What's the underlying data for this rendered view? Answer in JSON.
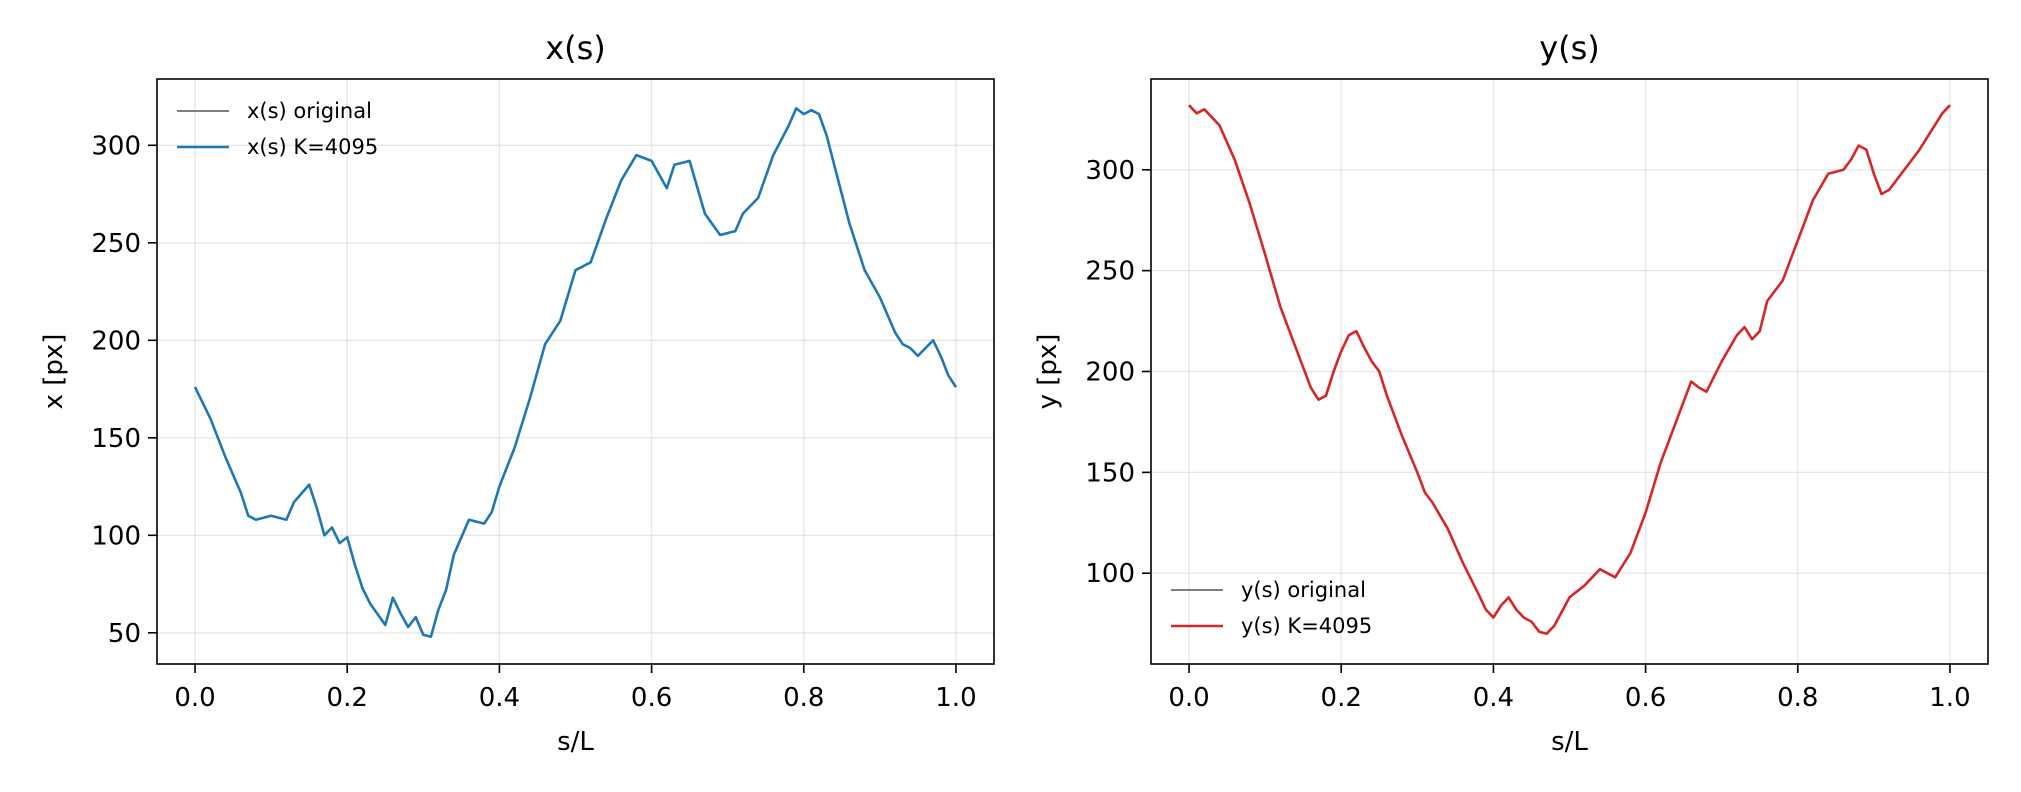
{
  "chart_data": [
    {
      "type": "line",
      "title": "x(s)",
      "xlabel": "s/L",
      "ylabel": "x [px]",
      "xlim": [
        -0.05,
        1.05
      ],
      "ylim": [
        34,
        334
      ],
      "xticks": [
        "0.0",
        "0.2",
        "0.4",
        "0.6",
        "0.8",
        "1.0"
      ],
      "yticks": [
        "50",
        "100",
        "150",
        "200",
        "250",
        "300"
      ],
      "grid": true,
      "legend_position": "upper left",
      "legend": [
        "x(s) original",
        "x(s) K=4095"
      ],
      "series": [
        {
          "name": "x(s) original",
          "color": "#7f7f7f",
          "x": [
            0.0,
            0.02,
            0.04,
            0.06,
            0.07,
            0.08,
            0.1,
            0.12,
            0.13,
            0.15,
            0.16,
            0.17,
            0.18,
            0.19,
            0.2,
            0.21,
            0.22,
            0.23,
            0.25,
            0.26,
            0.27,
            0.28,
            0.29,
            0.3,
            0.31,
            0.32,
            0.33,
            0.34,
            0.36,
            0.38,
            0.39,
            0.4,
            0.42,
            0.44,
            0.46,
            0.48,
            0.5,
            0.52,
            0.54,
            0.56,
            0.58,
            0.6,
            0.62,
            0.63,
            0.65,
            0.67,
            0.69,
            0.71,
            0.72,
            0.74,
            0.76,
            0.78,
            0.79,
            0.8,
            0.81,
            0.82,
            0.83,
            0.84,
            0.86,
            0.88,
            0.9,
            0.92,
            0.93,
            0.94,
            0.95,
            0.97,
            0.98,
            0.99,
            1.0
          ],
          "y": [
            176,
            160,
            140,
            122,
            110,
            108,
            110,
            108,
            117,
            126,
            114,
            100,
            104,
            96,
            99,
            85,
            73,
            65,
            54,
            68,
            60,
            53,
            58,
            49,
            48,
            62,
            72,
            90,
            108,
            106,
            112,
            125,
            145,
            170,
            198,
            210,
            236,
            240,
            262,
            282,
            295,
            292,
            278,
            290,
            292,
            265,
            254,
            256,
            265,
            273,
            295,
            310,
            319,
            316,
            318,
            316,
            305,
            290,
            260,
            236,
            222,
            204,
            198,
            196,
            192,
            200,
            192,
            182,
            176
          ]
        },
        {
          "name": "x(s) K=4095",
          "color": "#1f77b4",
          "x": [
            0.0,
            0.02,
            0.04,
            0.06,
            0.07,
            0.08,
            0.1,
            0.12,
            0.13,
            0.15,
            0.16,
            0.17,
            0.18,
            0.19,
            0.2,
            0.21,
            0.22,
            0.23,
            0.25,
            0.26,
            0.27,
            0.28,
            0.29,
            0.3,
            0.31,
            0.32,
            0.33,
            0.34,
            0.36,
            0.38,
            0.39,
            0.4,
            0.42,
            0.44,
            0.46,
            0.48,
            0.5,
            0.52,
            0.54,
            0.56,
            0.58,
            0.6,
            0.62,
            0.63,
            0.65,
            0.67,
            0.69,
            0.71,
            0.72,
            0.74,
            0.76,
            0.78,
            0.79,
            0.8,
            0.81,
            0.82,
            0.83,
            0.84,
            0.86,
            0.88,
            0.9,
            0.92,
            0.93,
            0.94,
            0.95,
            0.97,
            0.98,
            0.99,
            1.0
          ],
          "y": [
            176,
            160,
            140,
            122,
            110,
            108,
            110,
            108,
            117,
            126,
            114,
            100,
            104,
            96,
            99,
            85,
            73,
            65,
            54,
            68,
            60,
            53,
            58,
            49,
            48,
            62,
            72,
            90,
            108,
            106,
            112,
            125,
            145,
            170,
            198,
            210,
            236,
            240,
            262,
            282,
            295,
            292,
            278,
            290,
            292,
            265,
            254,
            256,
            265,
            273,
            295,
            310,
            319,
            316,
            318,
            316,
            305,
            290,
            260,
            236,
            222,
            204,
            198,
            196,
            192,
            200,
            192,
            182,
            176
          ]
        }
      ]
    },
    {
      "type": "line",
      "title": "y(s)",
      "xlabel": "s/L",
      "ylabel": "y [px]",
      "xlim": [
        -0.05,
        1.05
      ],
      "ylim": [
        55,
        345
      ],
      "xticks": [
        "0.0",
        "0.2",
        "0.4",
        "0.6",
        "0.8",
        "1.0"
      ],
      "yticks": [
        "100",
        "150",
        "200",
        "250",
        "300"
      ],
      "grid": true,
      "legend_position": "lower left",
      "legend": [
        "y(s) original",
        "y(s) K=4095"
      ],
      "series": [
        {
          "name": "y(s) original",
          "color": "#7f7f7f",
          "x": [
            0.0,
            0.01,
            0.02,
            0.03,
            0.04,
            0.06,
            0.08,
            0.1,
            0.12,
            0.14,
            0.16,
            0.17,
            0.18,
            0.19,
            0.2,
            0.21,
            0.22,
            0.23,
            0.24,
            0.25,
            0.26,
            0.28,
            0.3,
            0.31,
            0.32,
            0.34,
            0.36,
            0.38,
            0.39,
            0.4,
            0.41,
            0.42,
            0.43,
            0.44,
            0.45,
            0.46,
            0.47,
            0.48,
            0.5,
            0.52,
            0.54,
            0.56,
            0.58,
            0.6,
            0.62,
            0.64,
            0.66,
            0.67,
            0.68,
            0.7,
            0.72,
            0.73,
            0.74,
            0.75,
            0.76,
            0.78,
            0.8,
            0.82,
            0.84,
            0.86,
            0.87,
            0.88,
            0.89,
            0.9,
            0.91,
            0.92,
            0.94,
            0.96,
            0.98,
            0.99,
            1.0
          ],
          "y": [
            332,
            328,
            330,
            326,
            322,
            305,
            283,
            258,
            232,
            212,
            192,
            186,
            188,
            200,
            210,
            218,
            220,
            212,
            205,
            200,
            188,
            168,
            150,
            140,
            135,
            122,
            105,
            90,
            82,
            78,
            84,
            88,
            82,
            78,
            76,
            71,
            70,
            74,
            88,
            94,
            102,
            98,
            110,
            130,
            155,
            175,
            195,
            192,
            190,
            205,
            218,
            222,
            216,
            220,
            235,
            245,
            265,
            285,
            298,
            300,
            305,
            312,
            310,
            298,
            288,
            290,
            300,
            310,
            322,
            328,
            332
          ]
        },
        {
          "name": "y(s) K=4095",
          "color": "#d62728",
          "x": [
            0.0,
            0.01,
            0.02,
            0.03,
            0.04,
            0.06,
            0.08,
            0.1,
            0.12,
            0.14,
            0.16,
            0.17,
            0.18,
            0.19,
            0.2,
            0.21,
            0.22,
            0.23,
            0.24,
            0.25,
            0.26,
            0.28,
            0.3,
            0.31,
            0.32,
            0.34,
            0.36,
            0.38,
            0.39,
            0.4,
            0.41,
            0.42,
            0.43,
            0.44,
            0.45,
            0.46,
            0.47,
            0.48,
            0.5,
            0.52,
            0.54,
            0.56,
            0.58,
            0.6,
            0.62,
            0.64,
            0.66,
            0.67,
            0.68,
            0.7,
            0.72,
            0.73,
            0.74,
            0.75,
            0.76,
            0.78,
            0.8,
            0.82,
            0.84,
            0.86,
            0.87,
            0.88,
            0.89,
            0.9,
            0.91,
            0.92,
            0.94,
            0.96,
            0.98,
            0.99,
            1.0
          ],
          "y": [
            332,
            328,
            330,
            326,
            322,
            305,
            283,
            258,
            232,
            212,
            192,
            186,
            188,
            200,
            210,
            218,
            220,
            212,
            205,
            200,
            188,
            168,
            150,
            140,
            135,
            122,
            105,
            90,
            82,
            78,
            84,
            88,
            82,
            78,
            76,
            71,
            70,
            74,
            88,
            94,
            102,
            98,
            110,
            130,
            155,
            175,
            195,
            192,
            190,
            205,
            218,
            222,
            216,
            220,
            235,
            245,
            265,
            285,
            298,
            300,
            305,
            312,
            310,
            298,
            288,
            290,
            300,
            310,
            322,
            328,
            332
          ]
        }
      ]
    }
  ]
}
